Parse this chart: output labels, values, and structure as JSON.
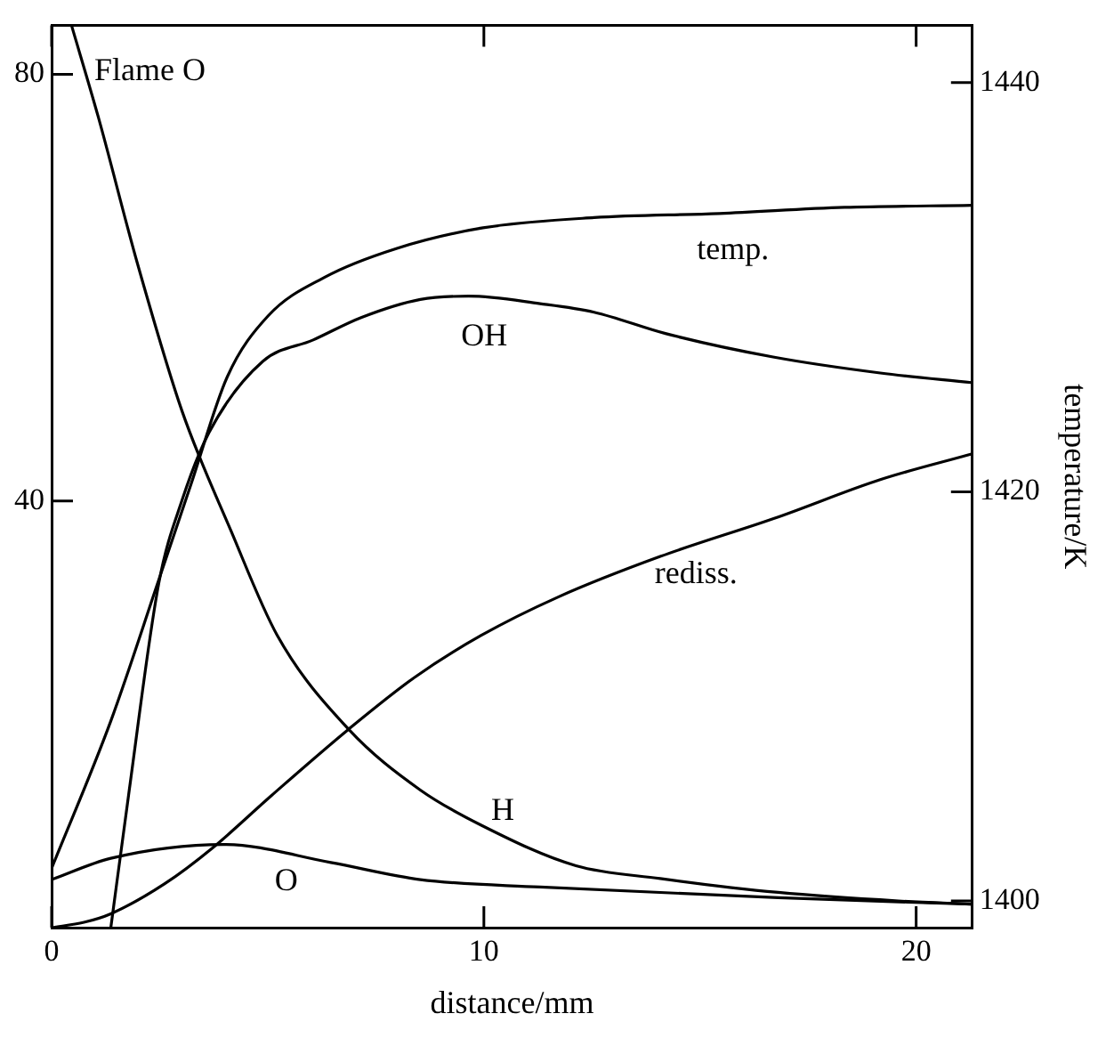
{
  "chart_data": {
    "type": "line",
    "annotations": [
      "Flame O"
    ],
    "xlabel": "distance/mm",
    "y2label": "temperature/K",
    "xlim": [
      0,
      21.3
    ],
    "xticks": [
      0,
      10,
      20
    ],
    "ylim": [
      0,
      84.6
    ],
    "yticks": [
      40,
      80
    ],
    "y2lim": [
      1398.7,
      1442.8
    ],
    "y2ticks": [
      1400,
      1420,
      1440
    ],
    "legend": false,
    "grid": false,
    "marker": "none",
    "line_style": "solid",
    "series": [
      {
        "name": "temp.",
        "color": "#000000",
        "axis": "y2",
        "x": [
          0,
          1.37,
          2.48,
          3.23,
          4.06,
          5.01,
          6.33,
          7.99,
          9.98,
          12.55,
          15.44,
          18.34,
          21.28
        ],
        "values": [
          1401.6,
          1408.8,
          1415.7,
          1420.4,
          1425.6,
          1428.6,
          1430.5,
          1431.9,
          1432.9,
          1433.4,
          1433.6,
          1433.9,
          1434.0
        ]
      },
      {
        "name": "OH",
        "color": "#000000",
        "x": [
          1.37,
          1.78,
          2.48,
          3.02,
          3.64,
          4.89,
          6.05,
          7.16,
          8.53,
          9.65,
          11.3,
          12.55,
          14.2,
          16.69,
          19.17,
          21.28
        ],
        "values": [
          0,
          12.4,
          32.3,
          40.1,
          46.4,
          53.1,
          55.1,
          57.2,
          58.9,
          59.2,
          58.5,
          57.7,
          55.7,
          53.5,
          52.0,
          51.1
        ]
      },
      {
        "name": "rediss.",
        "color": "#000000",
        "x": [
          0,
          0.75,
          1.37,
          2.61,
          3.73,
          5.09,
          6.87,
          8.41,
          9.94,
          11.72,
          14.08,
          16.81,
          19.17,
          21.28
        ],
        "values": [
          0,
          0.5,
          1.3,
          4.1,
          7.5,
          12.4,
          18.6,
          23.5,
          27.4,
          31.0,
          34.8,
          38.5,
          42.0,
          44.4
        ]
      },
      {
        "name": "H",
        "color": "#000000",
        "x": [
          0.46,
          1.08,
          1.99,
          3.02,
          4.14,
          5.22,
          6.87,
          8.53,
          9.94,
          12.13,
          14.08,
          16.81,
          19.59,
          21.28
        ],
        "values": [
          84.6,
          76.0,
          62.2,
          48.4,
          37.3,
          27.4,
          18.6,
          12.9,
          9.6,
          5.8,
          4.6,
          3.3,
          2.5,
          2.2
        ]
      },
      {
        "name": "O",
        "color": "#000000",
        "x": [
          0,
          1.37,
          3.98,
          6.46,
          8.53,
          11.3,
          16.81,
          21.28
        ],
        "values": [
          4.5,
          6.5,
          7.8,
          6.1,
          4.5,
          3.8,
          2.8,
          2.2
        ]
      }
    ]
  }
}
